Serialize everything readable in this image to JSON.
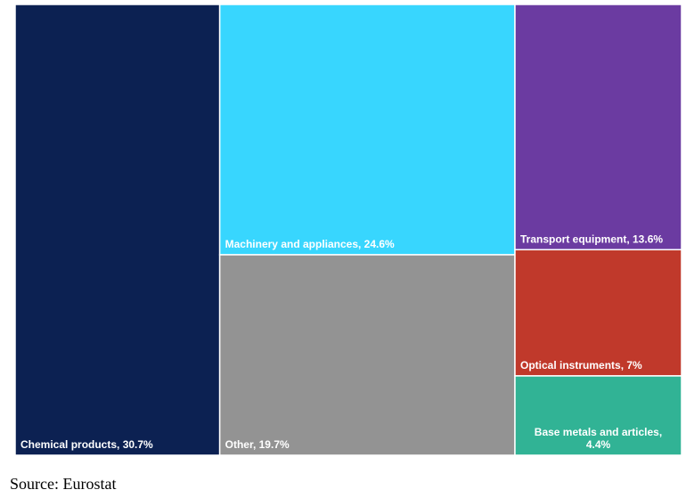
{
  "chart_data": {
    "type": "treemap",
    "series": [
      {
        "name": "Chemical products, 30.7%",
        "label_lines": [
          "Chemical products, 30.7%"
        ],
        "value": 30.7,
        "color": "#0c2152"
      },
      {
        "name": "Machinery and appliances, 24.6%",
        "label_lines": [
          "Machinery and appliances, 24.6%"
        ],
        "value": 24.6,
        "color": "#38d6fe"
      },
      {
        "name": "Other, 19.7%",
        "label_lines": [
          "Other, 19.7%"
        ],
        "value": 19.7,
        "color": "#939393"
      },
      {
        "name": "Transport equipment, 13.6%",
        "label_lines": [
          "Transport equipment, 13.6%"
        ],
        "value": 13.6,
        "color": "#6b3ba1"
      },
      {
        "name": "Optical instruments, 7%",
        "label_lines": [
          "Optical instruments, 7%"
        ],
        "value": 7,
        "color": "#c0392b"
      },
      {
        "name": "Base metals and articles, 4.4%",
        "label_lines": [
          "Base metals and articles,",
          "4.4%"
        ],
        "value": 4.4,
        "color": "#31b395"
      }
    ]
  },
  "source": "Source: Eurostat"
}
